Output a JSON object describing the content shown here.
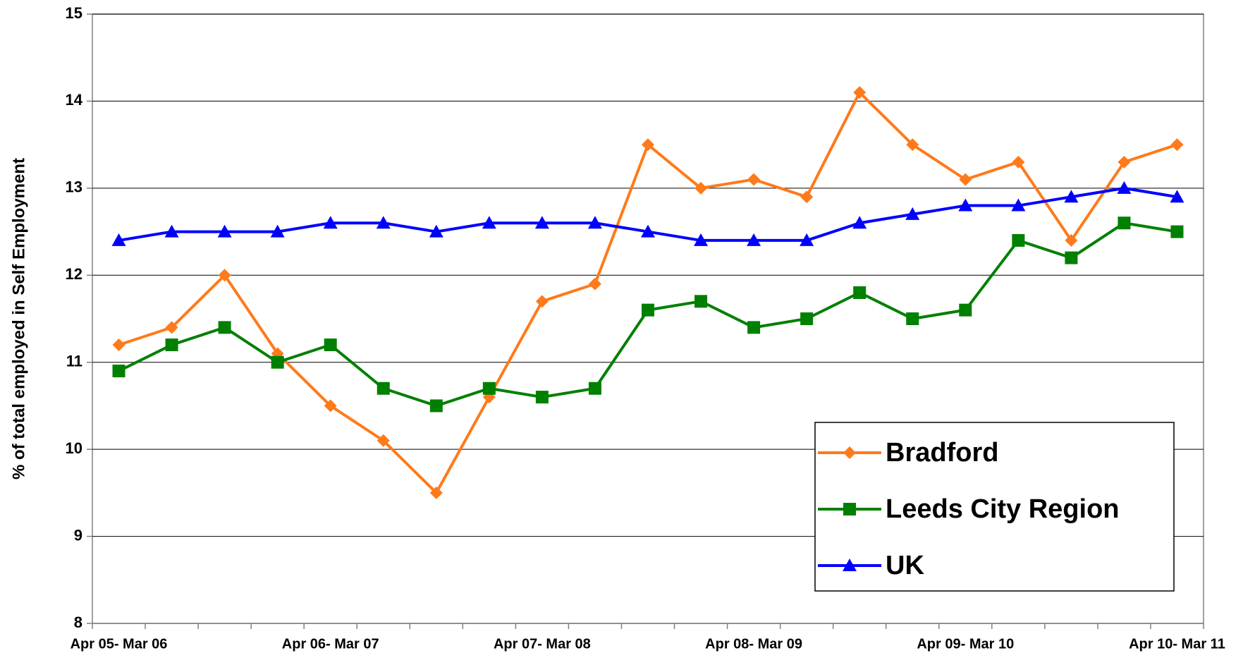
{
  "chart_data": {
    "type": "line",
    "y_label": "% of total employed in Self Employment",
    "categories": [
      "Apr 05- Mar 06",
      null,
      null,
      null,
      "Apr 06- Mar 07",
      null,
      null,
      null,
      "Apr 07- Mar 08",
      null,
      null,
      null,
      "Apr 08- Mar 09",
      null,
      null,
      null,
      "Apr 09- Mar 10",
      null,
      null,
      null,
      "Apr 10- Mar 11"
    ],
    "series": [
      {
        "name": "Bradford",
        "color": "#ff7a1a",
        "marker": "diamond",
        "values": [
          11.2,
          11.4,
          12.0,
          11.1,
          10.5,
          10.1,
          9.5,
          10.6,
          11.7,
          11.9,
          13.5,
          13.0,
          13.1,
          12.9,
          14.1,
          13.5,
          13.1,
          13.3,
          12.4,
          13.3,
          13.5
        ]
      },
      {
        "name": "Leeds City Region",
        "color": "#008000",
        "marker": "square",
        "values": [
          10.9,
          11.2,
          11.4,
          11.0,
          11.2,
          10.7,
          10.5,
          10.7,
          10.6,
          10.7,
          11.6,
          11.7,
          11.4,
          11.5,
          11.8,
          11.5,
          11.6,
          12.4,
          12.2,
          12.6,
          12.5
        ]
      },
      {
        "name": "UK",
        "color": "#0000ff",
        "marker": "triangle",
        "values": [
          12.4,
          12.5,
          12.5,
          12.5,
          12.6,
          12.6,
          12.5,
          12.6,
          12.6,
          12.6,
          12.5,
          12.4,
          12.4,
          12.4,
          12.6,
          12.7,
          12.8,
          12.8,
          12.9,
          13.0,
          12.9
        ]
      }
    ],
    "ylim": [
      8,
      15
    ],
    "yticks": [
      8,
      9,
      10,
      11,
      12,
      13,
      14,
      15
    ],
    "grid": true,
    "legend": "lower right"
  }
}
